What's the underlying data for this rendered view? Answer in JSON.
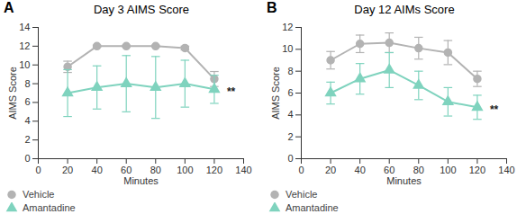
{
  "chart_data": [
    {
      "type": "line",
      "panel": "A",
      "title": "Day 3 AIMS Score",
      "x_label": "Minutes",
      "y_label": "AIMS Score",
      "x": [
        20,
        40,
        60,
        80,
        100,
        120
      ],
      "xlim": [
        0,
        140
      ],
      "xticks": [
        0,
        20,
        40,
        60,
        80,
        100,
        120,
        140
      ],
      "ylim": [
        0,
        14
      ],
      "yticks": [
        0,
        2,
        4,
        6,
        8,
        10,
        12,
        14
      ],
      "annotation": "**",
      "legend": "bottom-left",
      "series": [
        {
          "name": "Vehicle",
          "color": "#b3b3b3",
          "marker": "circle",
          "values": [
            9.8,
            12,
            12,
            12,
            11.8,
            8.5
          ],
          "errors": [
            0.6,
            0.1,
            0.1,
            0.1,
            0.2,
            0.8
          ]
        },
        {
          "name": "Amantadine",
          "color": "#7fd3be",
          "marker": "triangle",
          "values": [
            7,
            7.6,
            8,
            7.6,
            8,
            7.4
          ],
          "errors": [
            2.5,
            2.3,
            3,
            3.3,
            2.5,
            1.5
          ]
        }
      ]
    },
    {
      "type": "line",
      "panel": "B",
      "title": "Day 12 AIMs Score",
      "x_label": "Minutes",
      "y_label": "AIMS Score",
      "x": [
        20,
        40,
        60,
        80,
        100,
        120
      ],
      "xlim": [
        0,
        140
      ],
      "xticks": [
        0,
        20,
        40,
        60,
        80,
        100,
        120,
        140
      ],
      "ylim": [
        0,
        12
      ],
      "yticks": [
        0,
        2,
        4,
        6,
        8,
        10,
        12
      ],
      "annotation": "**",
      "legend": "bottom-left",
      "series": [
        {
          "name": "Vehicle",
          "color": "#b3b3b3",
          "marker": "circle",
          "values": [
            9,
            10.5,
            10.6,
            10.1,
            9.7,
            7.3
          ],
          "errors": [
            0.8,
            0.8,
            0.9,
            1,
            1.1,
            0.7
          ]
        },
        {
          "name": "Amantadine",
          "color": "#7fd3be",
          "marker": "triangle",
          "values": [
            6,
            7.3,
            8.1,
            6.7,
            5.2,
            4.7
          ],
          "errors": [
            1,
            1.4,
            1.6,
            1.3,
            1.3,
            1.1
          ]
        }
      ]
    }
  ]
}
